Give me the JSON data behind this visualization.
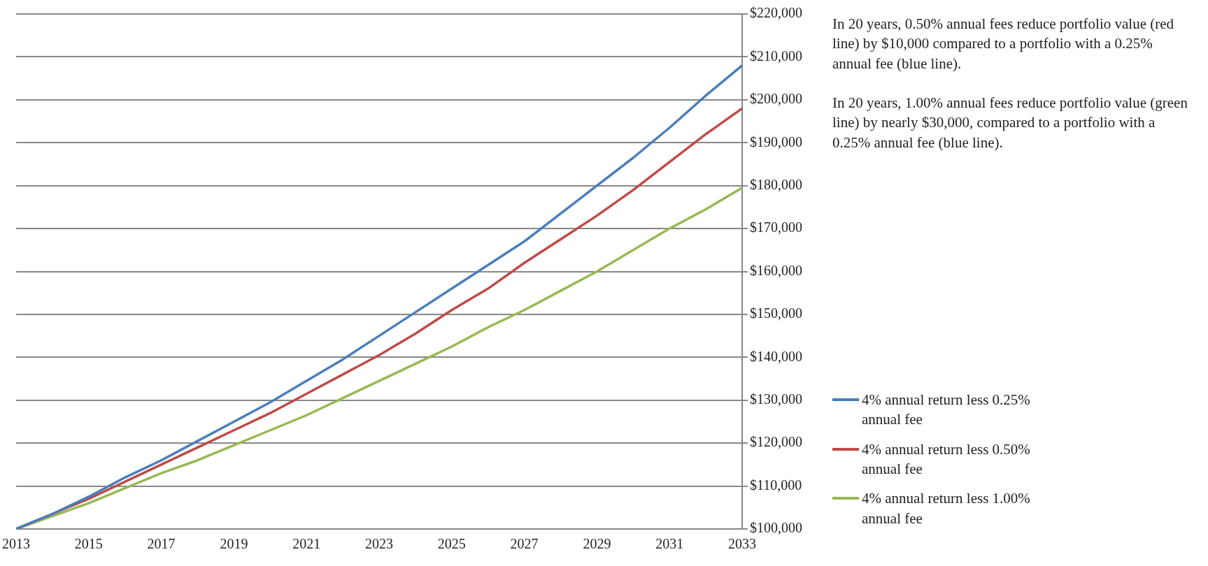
{
  "chart_data": {
    "type": "line",
    "x": [
      2013,
      2014,
      2015,
      2016,
      2017,
      2018,
      2019,
      2020,
      2021,
      2022,
      2023,
      2024,
      2025,
      2026,
      2027,
      2028,
      2029,
      2030,
      2031,
      2032,
      2033
    ],
    "series": [
      {
        "name": "4% annual return less 0.25% annual fee",
        "color": "#4a7ebb",
        "values": [
          100000,
          103500,
          107500,
          112000,
          116000,
          120500,
          125000,
          129500,
          134500,
          139500,
          145000,
          150500,
          156000,
          161500,
          167000,
          173500,
          180000,
          186500,
          193500,
          201000,
          208000
        ]
      },
      {
        "name": "4% annual return less 0.50% annual fee",
        "color": "#be4b48",
        "values": [
          100000,
          103500,
          107000,
          111000,
          115000,
          119000,
          123000,
          127000,
          131500,
          136000,
          140500,
          145500,
          151000,
          156000,
          162000,
          167500,
          173000,
          179000,
          185500,
          192000,
          198000
        ]
      },
      {
        "name": "4% annual return less 1.00% annual fee",
        "color": "#98b954",
        "values": [
          100000,
          103000,
          106000,
          109500,
          113000,
          116000,
          119500,
          123000,
          126500,
          130500,
          134500,
          138500,
          142500,
          147000,
          151000,
          155500,
          160000,
          165000,
          170000,
          174500,
          179500
        ]
      }
    ],
    "xlim": [
      2013,
      2033
    ],
    "xticks": [
      2013,
      2015,
      2017,
      2019,
      2021,
      2023,
      2025,
      2027,
      2029,
      2031,
      2033
    ],
    "ylim": [
      100000,
      220000
    ],
    "yticks": [
      {
        "value": 100000,
        "label": "$100,000"
      },
      {
        "value": 110000,
        "label": "$110,000"
      },
      {
        "value": 120000,
        "label": "$120,000"
      },
      {
        "value": 130000,
        "label": "$130,000"
      },
      {
        "value": 140000,
        "label": "$140,000"
      },
      {
        "value": 150000,
        "label": "$150,000"
      },
      {
        "value": 160000,
        "label": "$160,000"
      },
      {
        "value": 170000,
        "label": "$170,000"
      },
      {
        "value": 180000,
        "label": "$180,000"
      },
      {
        "value": 190000,
        "label": "$190,000"
      },
      {
        "value": 200000,
        "label": "$200,000"
      },
      {
        "value": 210000,
        "label": "$210,000"
      },
      {
        "value": 220000,
        "label": "$220,000"
      }
    ],
    "grid": "y",
    "legend": "right",
    "marker": "none",
    "line_style": "solid",
    "annotations": [
      "In 20 years, 0.50% annual fees reduce portfolio value (red line) by $10,000 compared to a portfolio with a 0.25% annual fee (blue line).",
      "In 20 years, 1.00% annual fees reduce portfolio value (green line) by nearly $30,000, compared to a portfolio with a 0.25% annual fee (blue line)."
    ]
  }
}
